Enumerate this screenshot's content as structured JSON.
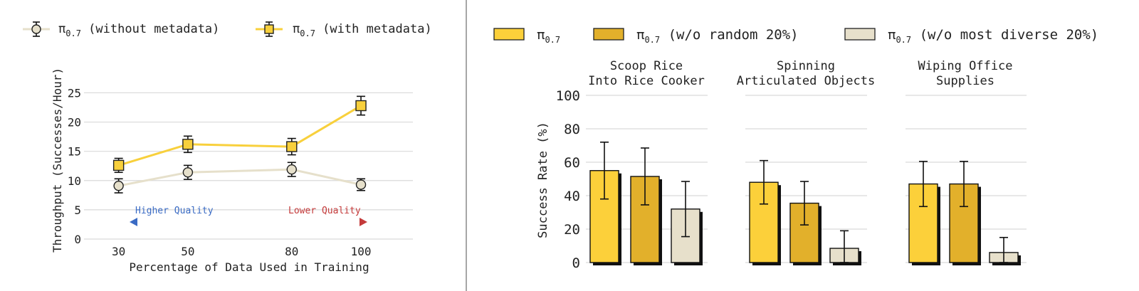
{
  "chart_data": [
    {
      "type": "line",
      "xlabel": "Percentage of Data Used in Training",
      "ylabel": "Throughput (Successes/Hour)",
      "x": [
        30,
        50,
        80,
        100
      ],
      "xticks": [
        "30",
        "50",
        "80",
        "100"
      ],
      "yticks": [
        "0",
        "5",
        "10",
        "15",
        "20",
        "25"
      ],
      "ylim": [
        0,
        27
      ],
      "grid": true,
      "legend_position": "top",
      "series": [
        {
          "name": "π",
          "subscript": "0.7",
          "suffix": "(without metadata)",
          "marker": "circle",
          "color": "#e6e0cb",
          "values": [
            9.1,
            11.4,
            11.9,
            9.3
          ],
          "err": [
            1.2,
            1.2,
            1.2,
            1.0
          ]
        },
        {
          "name": "π",
          "subscript": "0.7",
          "suffix": "(with metadata)",
          "marker": "square",
          "color": "#f8d03c",
          "values": [
            12.6,
            16.2,
            15.8,
            22.8
          ],
          "err": [
            1.2,
            1.4,
            1.4,
            1.6
          ]
        }
      ],
      "annotations": [
        {
          "text": "Higher Quality",
          "color": "#3a6bc4"
        },
        {
          "text": "Lower Quality",
          "color": "#c43a3a"
        }
      ]
    },
    {
      "type": "bar",
      "ylabel": "Success Rate (%)",
      "ylim": [
        0,
        100
      ],
      "yticks": [
        "0",
        "20",
        "40",
        "60",
        "80",
        "100"
      ],
      "grid": true,
      "legend_position": "top",
      "panels": [
        {
          "title": [
            "Scoop Rice",
            "Into Rice Cooker"
          ]
        },
        {
          "title": [
            "Spinning",
            "Articulated Objects"
          ]
        },
        {
          "title": [
            "Wiping Office",
            "Supplies"
          ]
        }
      ],
      "series": [
        {
          "name": "π",
          "subscript": "0.7",
          "suffix": "",
          "color": "#fcd03a",
          "values": [
            55,
            48,
            47
          ],
          "err": [
            17,
            13,
            13.5
          ]
        },
        {
          "name": "π",
          "subscript": "0.7",
          "suffix": "(w/o random 20%)",
          "color": "#e2b02b",
          "values": [
            51.5,
            35.5,
            47
          ],
          "err": [
            17,
            13,
            13.5
          ]
        },
        {
          "name": "π",
          "subscript": "0.7",
          "suffix": "(w/o most diverse 20%)",
          "color": "#e7e0cb",
          "values": [
            32,
            8.5,
            6
          ],
          "err": [
            16.5,
            10.5,
            9
          ]
        }
      ]
    }
  ]
}
